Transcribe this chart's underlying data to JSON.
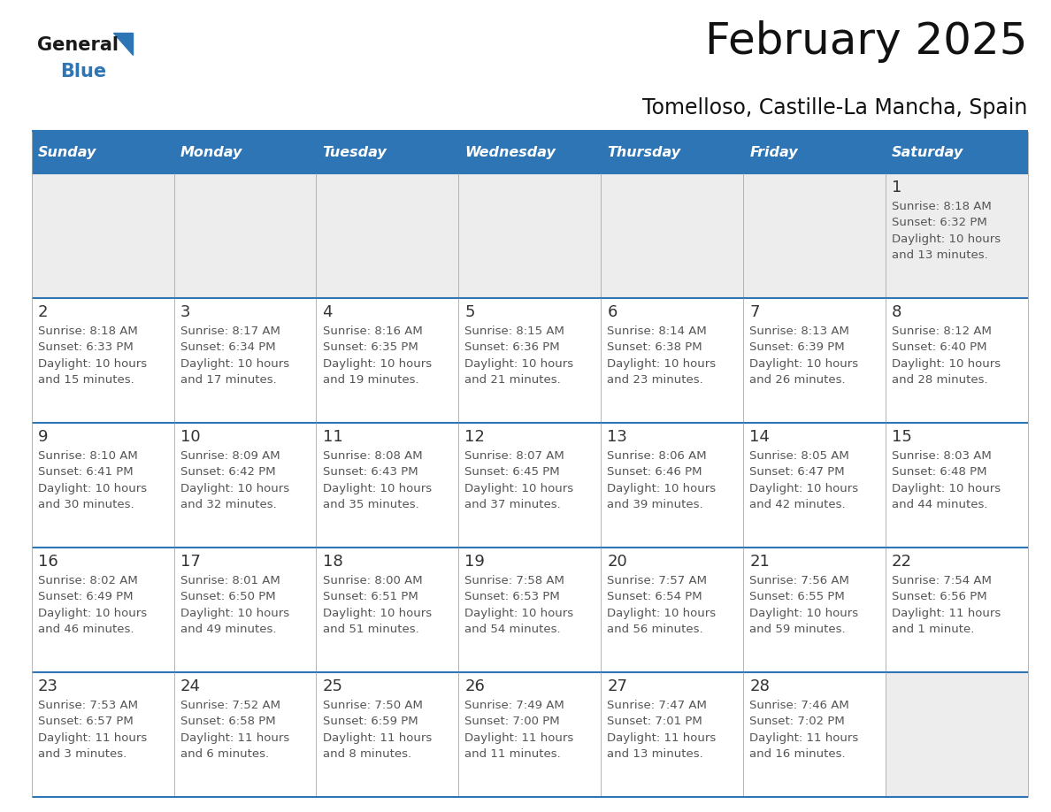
{
  "title": "February 2025",
  "subtitle": "Tomelloso, Castille-La Mancha, Spain",
  "header_bg_color": "#2E75B6",
  "header_text_color": "#FFFFFF",
  "cell_bg_color": "#FFFFFF",
  "alt_cell_bg_color": "#EDEDED",
  "day_number_color": "#333333",
  "text_color": "#555555",
  "border_color": "#2E75B6",
  "separator_color": "#AAAAAA",
  "days_of_week": [
    "Sunday",
    "Monday",
    "Tuesday",
    "Wednesday",
    "Thursday",
    "Friday",
    "Saturday"
  ],
  "weeks": [
    [
      {
        "day": null,
        "info": null
      },
      {
        "day": null,
        "info": null
      },
      {
        "day": null,
        "info": null
      },
      {
        "day": null,
        "info": null
      },
      {
        "day": null,
        "info": null
      },
      {
        "day": null,
        "info": null
      },
      {
        "day": 1,
        "info": "Sunrise: 8:18 AM\nSunset: 6:32 PM\nDaylight: 10 hours\nand 13 minutes."
      }
    ],
    [
      {
        "day": 2,
        "info": "Sunrise: 8:18 AM\nSunset: 6:33 PM\nDaylight: 10 hours\nand 15 minutes."
      },
      {
        "day": 3,
        "info": "Sunrise: 8:17 AM\nSunset: 6:34 PM\nDaylight: 10 hours\nand 17 minutes."
      },
      {
        "day": 4,
        "info": "Sunrise: 8:16 AM\nSunset: 6:35 PM\nDaylight: 10 hours\nand 19 minutes."
      },
      {
        "day": 5,
        "info": "Sunrise: 8:15 AM\nSunset: 6:36 PM\nDaylight: 10 hours\nand 21 minutes."
      },
      {
        "day": 6,
        "info": "Sunrise: 8:14 AM\nSunset: 6:38 PM\nDaylight: 10 hours\nand 23 minutes."
      },
      {
        "day": 7,
        "info": "Sunrise: 8:13 AM\nSunset: 6:39 PM\nDaylight: 10 hours\nand 26 minutes."
      },
      {
        "day": 8,
        "info": "Sunrise: 8:12 AM\nSunset: 6:40 PM\nDaylight: 10 hours\nand 28 minutes."
      }
    ],
    [
      {
        "day": 9,
        "info": "Sunrise: 8:10 AM\nSunset: 6:41 PM\nDaylight: 10 hours\nand 30 minutes."
      },
      {
        "day": 10,
        "info": "Sunrise: 8:09 AM\nSunset: 6:42 PM\nDaylight: 10 hours\nand 32 minutes."
      },
      {
        "day": 11,
        "info": "Sunrise: 8:08 AM\nSunset: 6:43 PM\nDaylight: 10 hours\nand 35 minutes."
      },
      {
        "day": 12,
        "info": "Sunrise: 8:07 AM\nSunset: 6:45 PM\nDaylight: 10 hours\nand 37 minutes."
      },
      {
        "day": 13,
        "info": "Sunrise: 8:06 AM\nSunset: 6:46 PM\nDaylight: 10 hours\nand 39 minutes."
      },
      {
        "day": 14,
        "info": "Sunrise: 8:05 AM\nSunset: 6:47 PM\nDaylight: 10 hours\nand 42 minutes."
      },
      {
        "day": 15,
        "info": "Sunrise: 8:03 AM\nSunset: 6:48 PM\nDaylight: 10 hours\nand 44 minutes."
      }
    ],
    [
      {
        "day": 16,
        "info": "Sunrise: 8:02 AM\nSunset: 6:49 PM\nDaylight: 10 hours\nand 46 minutes."
      },
      {
        "day": 17,
        "info": "Sunrise: 8:01 AM\nSunset: 6:50 PM\nDaylight: 10 hours\nand 49 minutes."
      },
      {
        "day": 18,
        "info": "Sunrise: 8:00 AM\nSunset: 6:51 PM\nDaylight: 10 hours\nand 51 minutes."
      },
      {
        "day": 19,
        "info": "Sunrise: 7:58 AM\nSunset: 6:53 PM\nDaylight: 10 hours\nand 54 minutes."
      },
      {
        "day": 20,
        "info": "Sunrise: 7:57 AM\nSunset: 6:54 PM\nDaylight: 10 hours\nand 56 minutes."
      },
      {
        "day": 21,
        "info": "Sunrise: 7:56 AM\nSunset: 6:55 PM\nDaylight: 10 hours\nand 59 minutes."
      },
      {
        "day": 22,
        "info": "Sunrise: 7:54 AM\nSunset: 6:56 PM\nDaylight: 11 hours\nand 1 minute."
      }
    ],
    [
      {
        "day": 23,
        "info": "Sunrise: 7:53 AM\nSunset: 6:57 PM\nDaylight: 11 hours\nand 3 minutes."
      },
      {
        "day": 24,
        "info": "Sunrise: 7:52 AM\nSunset: 6:58 PM\nDaylight: 11 hours\nand 6 minutes."
      },
      {
        "day": 25,
        "info": "Sunrise: 7:50 AM\nSunset: 6:59 PM\nDaylight: 11 hours\nand 8 minutes."
      },
      {
        "day": 26,
        "info": "Sunrise: 7:49 AM\nSunset: 7:00 PM\nDaylight: 11 hours\nand 11 minutes."
      },
      {
        "day": 27,
        "info": "Sunrise: 7:47 AM\nSunset: 7:01 PM\nDaylight: 11 hours\nand 13 minutes."
      },
      {
        "day": 28,
        "info": "Sunrise: 7:46 AM\nSunset: 7:02 PM\nDaylight: 11 hours\nand 16 minutes."
      },
      {
        "day": null,
        "info": null
      }
    ]
  ],
  "logo_text_general": "General",
  "logo_text_blue": "Blue",
  "logo_color_general": "#1a1a1a",
  "logo_color_blue": "#2E75B6",
  "title_fontsize": 36,
  "subtitle_fontsize": 17,
  "header_fontsize": 11.5,
  "day_num_fontsize": 13,
  "info_fontsize": 9.5
}
